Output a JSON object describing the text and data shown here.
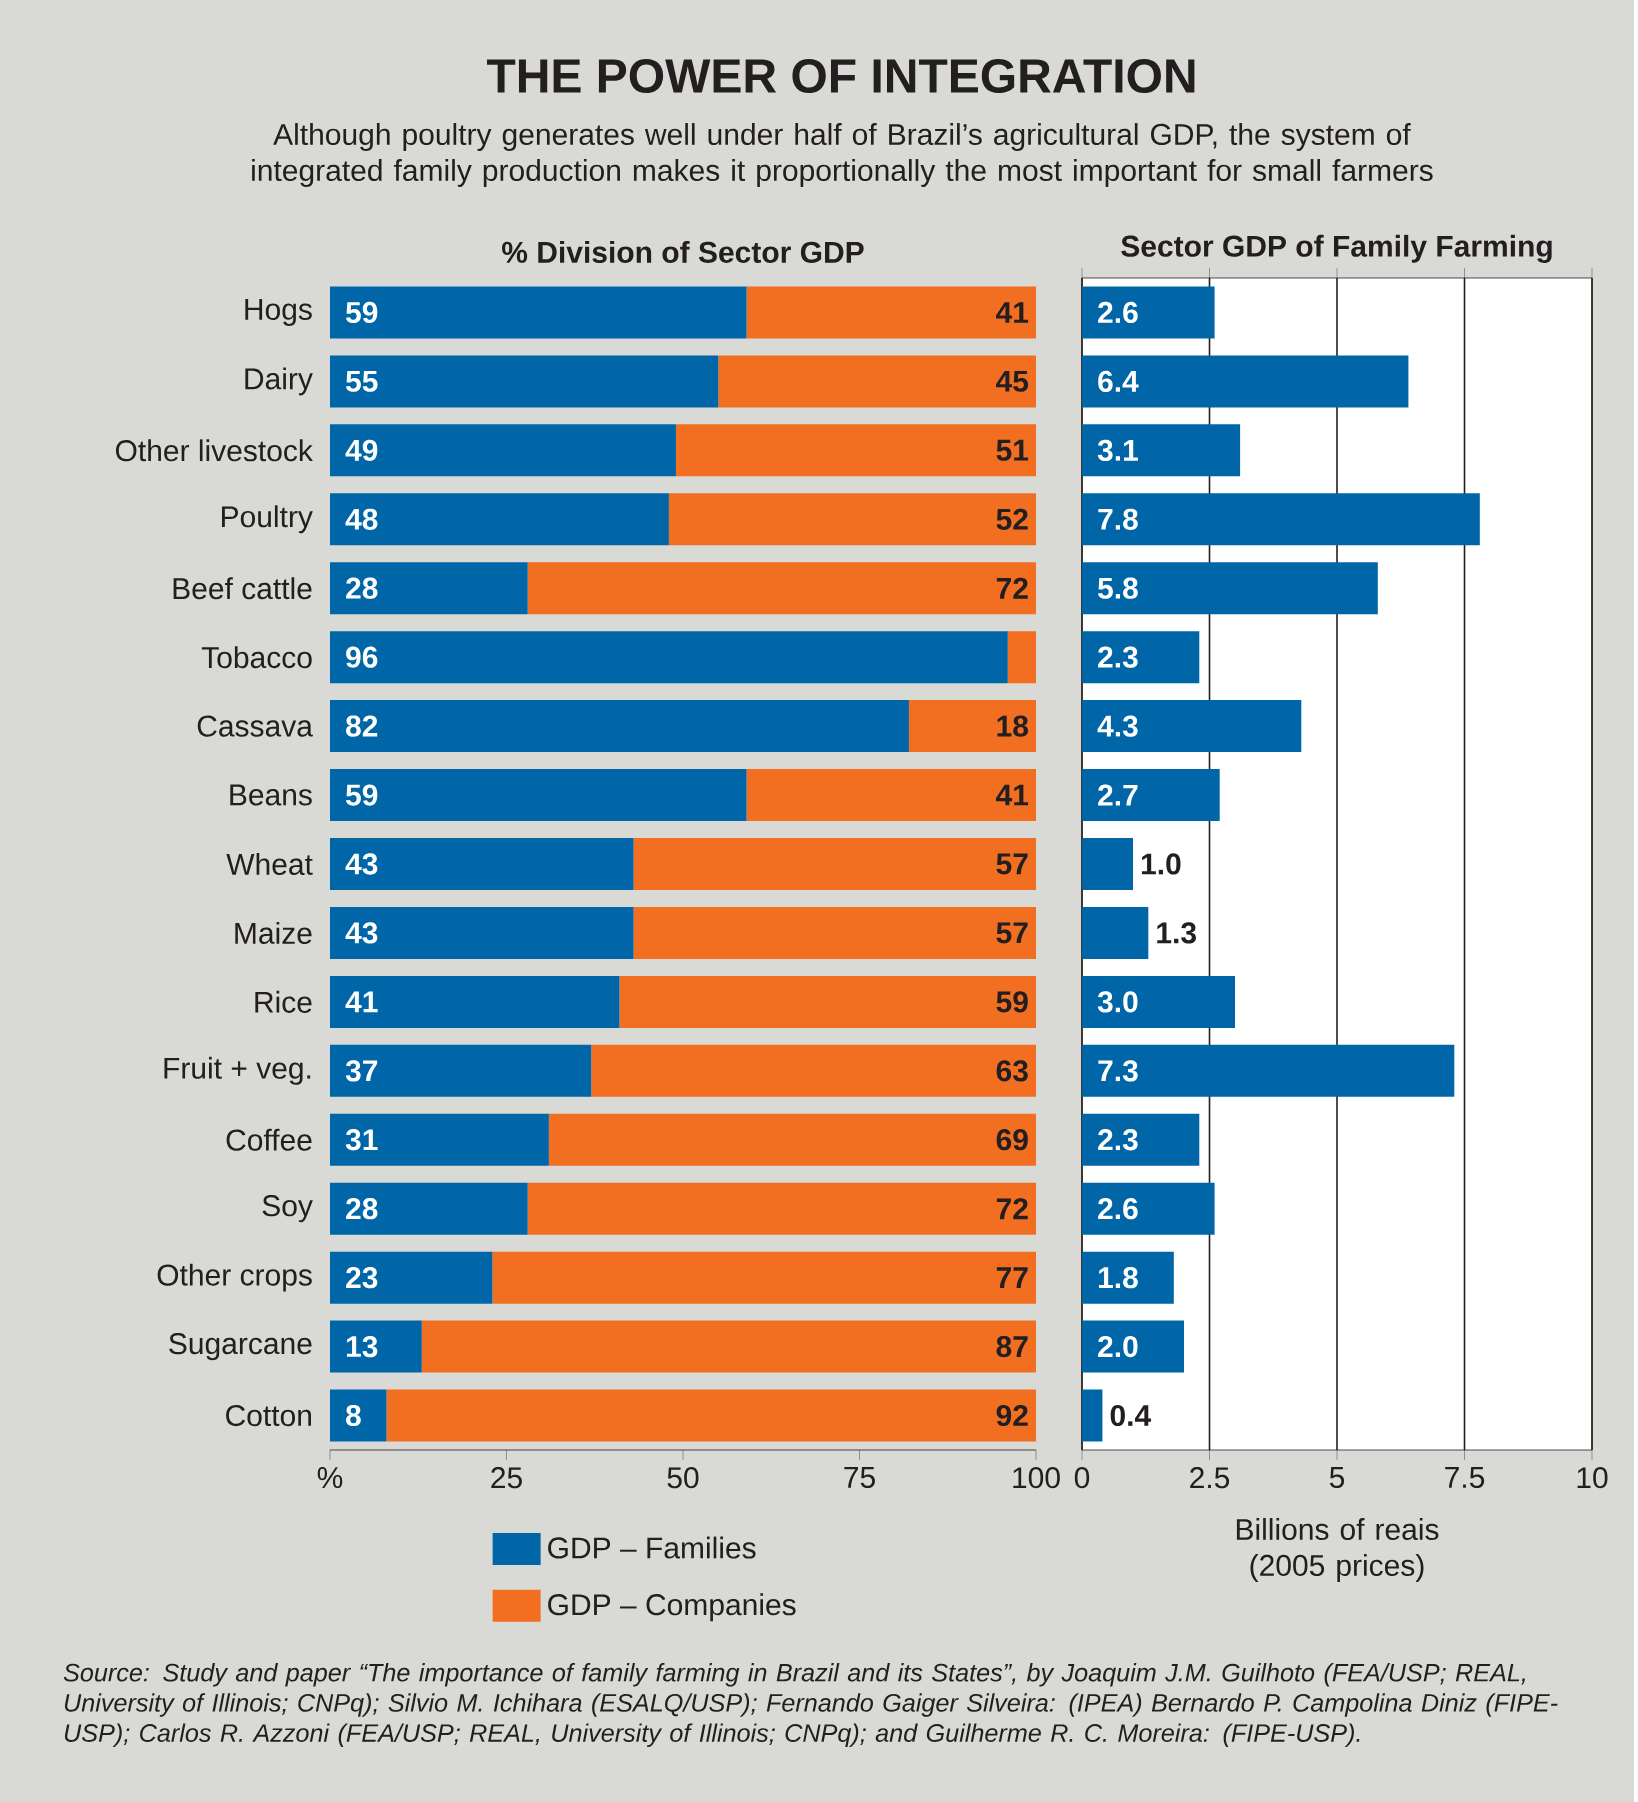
{
  "chart_data": [
    {
      "type": "other",
      "title": "THE POWER OF INTEGRATION",
      "subtitle": "Although poultry generates well under half of Brazil’s agricultural GDP, the system of integrated family production makes it proportionally the most important for small farmers",
      "annotations": [
        "Source: Study and paper “The importance of family farming in Brazil and its States”, by Joaquim J.M. Guilhoto (FEA/USP; REAL, University of Illinois; CNPq); Silvio M. Ichihara (ESALQ/USP); Fernando Gaiger Silveira: (IPEA) Bernardo P. Campolina Diniz (FIPE-USP); Carlos R. Azzoni (FEA/USP; REAL, University of Illinois; CNPq); and Guilherme R. C. Moreira: (FIPE-USP)."
      ]
    },
    {
      "type": "bar",
      "orientation": "horizontal",
      "stacked": true,
      "title": "% Division of Sector GDP",
      "categories": [
        "Hogs",
        "Dairy",
        "Other livestock",
        "Poultry",
        "Beef cattle",
        "Tobacco",
        "Cassava",
        "Beans",
        "Wheat",
        "Maize",
        "Rice",
        "Fruit + veg.",
        "Coffee",
        "Soy",
        "Other crops",
        "Sugarcane",
        "Cotton"
      ],
      "series": [
        {
          "name": "GDP – Families",
          "color": "#0066a8",
          "values": [
            59,
            55,
            49,
            48,
            28,
            96,
            82,
            59,
            43,
            43,
            41,
            37,
            31,
            28,
            23,
            13,
            8
          ],
          "value_labels": [
            "59",
            "55",
            "49",
            "48",
            "28",
            "96",
            "82",
            "59",
            "43",
            "43",
            "41",
            "37",
            "31",
            "28",
            "23",
            "13",
            "8"
          ]
        },
        {
          "name": "GDP – Companies",
          "color": "#f26f21",
          "values": [
            41,
            45,
            51,
            52,
            72,
            4,
            18,
            41,
            57,
            57,
            59,
            63,
            69,
            72,
            77,
            87,
            92
          ],
          "value_labels": [
            "41",
            "45",
            "51",
            "52",
            "72",
            null,
            "18",
            "41",
            "57",
            "57",
            "59",
            "63",
            "69",
            "72",
            "77",
            "87",
            "92"
          ]
        }
      ],
      "xlim": [
        0,
        100
      ],
      "xticks": [
        {
          "value": 0,
          "label": "%"
        },
        25,
        50,
        75,
        100
      ],
      "legend": "bottom"
    },
    {
      "type": "bar",
      "orientation": "horizontal",
      "title": "Sector GDP of Family Farming",
      "xlabel": "Billions of reais (2005 prices)",
      "categories": [
        null,
        null,
        null,
        null,
        null,
        null,
        null,
        null,
        null,
        null,
        null,
        null,
        null,
        null,
        null,
        null,
        null
      ],
      "values": [
        2.6,
        6.4,
        3.1,
        7.8,
        5.8,
        2.3,
        4.3,
        2.7,
        1.0,
        1.3,
        3.0,
        7.3,
        2.3,
        2.6,
        1.8,
        2.0,
        0.4
      ],
      "color": "#0066a8",
      "value_labels": [
        "2.6",
        "6.4",
        "3.1",
        "7.8",
        "5.8",
        "2.3",
        "4.3",
        "2.7",
        "1.0",
        "1.3",
        "3.0",
        "7.3",
        "2.3",
        "2.6",
        "1.8",
        "2.0",
        "0.4"
      ],
      "xlim": [
        0,
        10
      ],
      "xticks": [
        0,
        2.5,
        5,
        7.5,
        10
      ],
      "grid": "x",
      "tick_labels": "x"
    }
  ]
}
